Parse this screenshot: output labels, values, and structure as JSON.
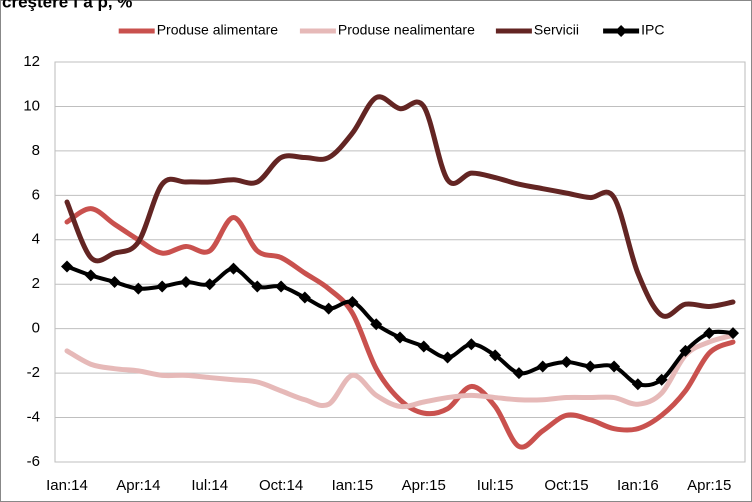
{
  "chart_data": {
    "type": "line",
    "title": "creştere f a p, %",
    "categories": [
      "Ian:14",
      null,
      null,
      "Apr:14",
      null,
      null,
      "Iul:14",
      null,
      null,
      "Oct:14",
      null,
      null,
      "Ian:15",
      null,
      null,
      "Apr:15",
      null,
      null,
      "Iul:15",
      null,
      null,
      "Oct:15",
      null,
      null,
      "Ian:16",
      null,
      null,
      "Apr:15",
      null
    ],
    "series": [
      {
        "name": "Produse alimentare",
        "color": "#c9514e",
        "values": [
          4.8,
          5.4,
          4.7,
          4.0,
          3.4,
          3.7,
          3.5,
          5.0,
          3.5,
          3.2,
          2.5,
          1.8,
          0.7,
          -1.8,
          -3.2,
          -3.8,
          -3.6,
          -2.6,
          -3.5,
          -5.3,
          -4.6,
          -3.9,
          -4.1,
          -4.5,
          -4.5,
          -3.9,
          -2.8,
          -1.1,
          -0.6
        ]
      },
      {
        "name": "Produse nealimentare",
        "color": "#e6b9b8",
        "values": [
          -1.0,
          -1.6,
          -1.8,
          -1.9,
          -2.1,
          -2.1,
          -2.2,
          -2.3,
          -2.4,
          -2.8,
          -3.2,
          -3.4,
          -2.1,
          -3.0,
          -3.5,
          -3.3,
          -3.1,
          -3.0,
          -3.1,
          -3.2,
          -3.2,
          -3.1,
          -3.1,
          -3.1,
          -3.4,
          -2.9,
          -1.2,
          -0.6,
          -0.3
        ]
      },
      {
        "name": "Servicii",
        "color": "#632523",
        "values": [
          5.7,
          3.2,
          3.4,
          3.9,
          6.5,
          6.6,
          6.6,
          6.7,
          6.6,
          7.7,
          7.7,
          7.7,
          8.8,
          10.4,
          9.9,
          10.0,
          6.7,
          7.0,
          6.8,
          6.5,
          6.3,
          6.1,
          5.9,
          5.9,
          2.5,
          0.6,
          1.1,
          1.0,
          1.2
        ]
      },
      {
        "name": "IPC",
        "color": "#000000",
        "marker": "diamond",
        "values": [
          2.8,
          2.4,
          2.1,
          1.8,
          1.9,
          2.1,
          2.0,
          2.7,
          1.9,
          1.9,
          1.4,
          0.9,
          1.2,
          0.2,
          -0.4,
          -0.8,
          -1.3,
          -0.7,
          -1.2,
          -2.0,
          -1.7,
          -1.5,
          -1.7,
          -1.7,
          -2.5,
          -2.3,
          -1.0,
          -0.2,
          -0.2
        ]
      }
    ],
    "ylim": [
      -6,
      12
    ],
    "yticks": [
      -6,
      -4,
      -2,
      0,
      2,
      4,
      6,
      8,
      10,
      12
    ],
    "grid": true,
    "legend": "top"
  }
}
